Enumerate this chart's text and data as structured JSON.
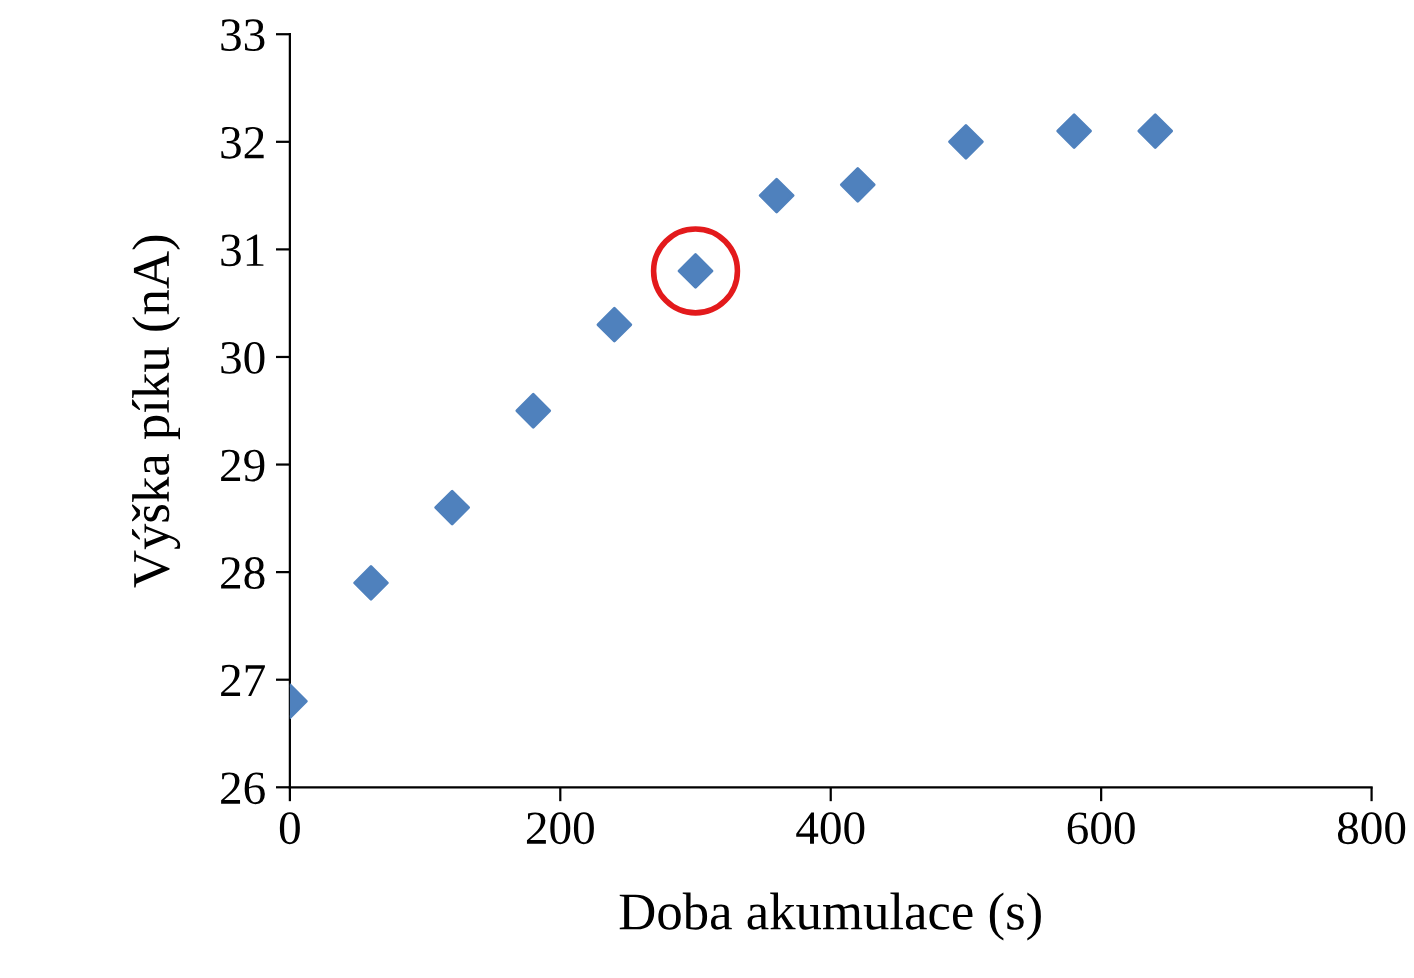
{
  "chart_data": {
    "type": "scatter",
    "xlabel": "Doba akumulace (s)",
    "ylabel": "Výška píku (nA)",
    "x": [
      0,
      60,
      120,
      180,
      240,
      300,
      360,
      420,
      500,
      580,
      640
    ],
    "series": [
      {
        "color": "#4f81bd",
        "values": [
          26.8,
          27.9,
          28.6,
          29.5,
          30.3,
          30.8,
          31.5,
          31.6,
          32.0,
          32.1,
          32.1
        ]
      }
    ],
    "xlim": [
      0,
      800
    ],
    "xticks": [
      0,
      200,
      400,
      600,
      800
    ],
    "ylim": [
      26,
      33
    ],
    "yticks": [
      26,
      27,
      28,
      29,
      30,
      31,
      32,
      33
    ],
    "marker": "diamond",
    "grid": false,
    "legend": false
  }
}
